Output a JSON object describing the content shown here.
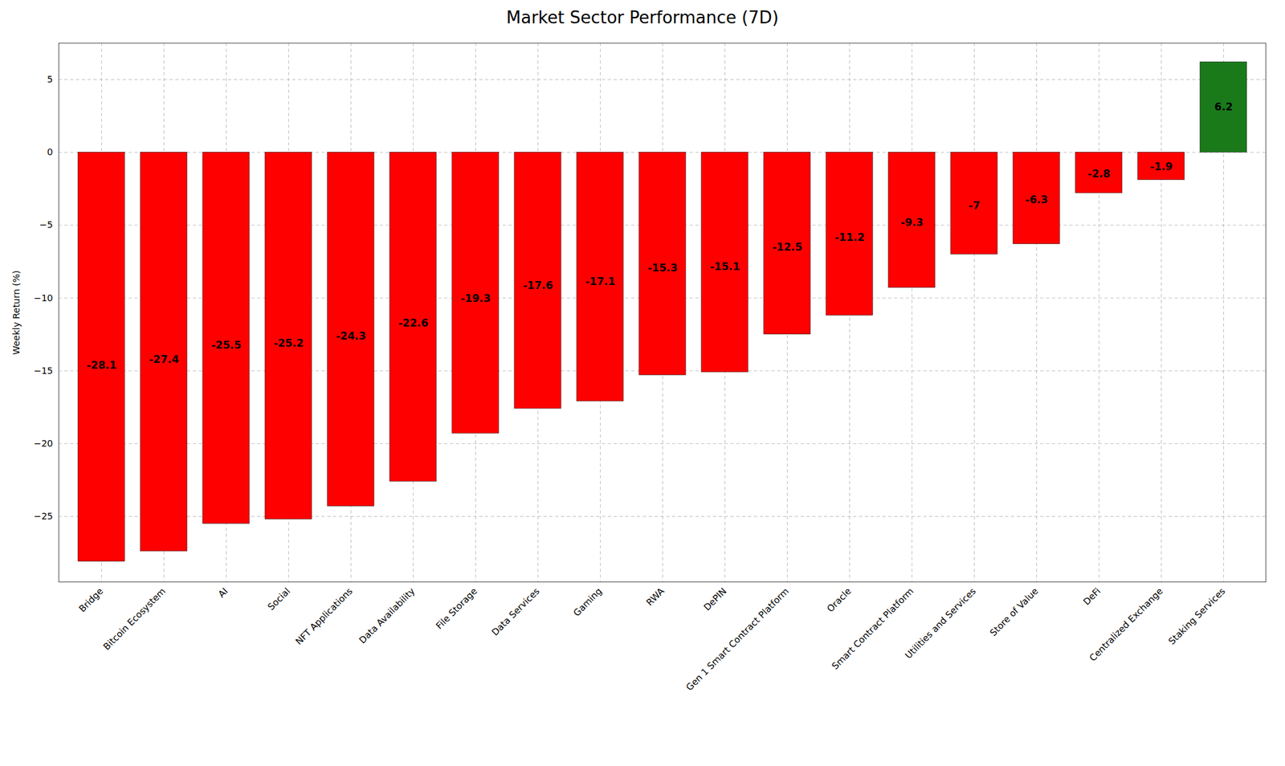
{
  "chart_data": {
    "type": "bar",
    "title": "Market Sector Performance (7D)",
    "ylabel": "Weekly Return (%)",
    "categories": [
      "Bridge",
      "Bitcoin Ecosystem",
      "AI",
      "Social",
      "NFT Applications",
      "Data Availability",
      "File Storage",
      "Data Services",
      "Gaming",
      "RWA",
      "DePIN",
      "Gen 1 Smart Contract Platform",
      "Oracle",
      "Smart Contract Platform",
      "Utilities and Services",
      "Store of Value",
      "DeFi",
      "Centralized Exchange",
      "Staking Services"
    ],
    "values": [
      -28.1,
      -27.4,
      -25.5,
      -25.2,
      -24.3,
      -22.6,
      -19.3,
      -17.6,
      -17.1,
      -15.3,
      -15.1,
      -12.5,
      -11.2,
      -9.3,
      -7.0,
      -6.3,
      -2.8,
      -1.9,
      6.2
    ],
    "colors": [
      "#FF0000",
      "#FF0000",
      "#FF0000",
      "#FF0000",
      "#FF0000",
      "#FF0000",
      "#FF0000",
      "#FF0000",
      "#FF0000",
      "#FF0000",
      "#FF0000",
      "#FF0000",
      "#FF0000",
      "#FF0000",
      "#FF0000",
      "#FF0000",
      "#FF0000",
      "#FF0000",
      "#1a7a1a"
    ],
    "ylim": [
      -29.5,
      7.5
    ],
    "yticks": [
      5,
      0,
      {
        "value": -5,
        "label": "−5"
      },
      {
        "value": -10,
        "label": "−10"
      },
      {
        "value": -15,
        "label": "−15"
      },
      {
        "value": -20,
        "label": "−20"
      },
      {
        "value": -25,
        "label": "−25"
      }
    ],
    "grid": true,
    "data_labels": true
  }
}
